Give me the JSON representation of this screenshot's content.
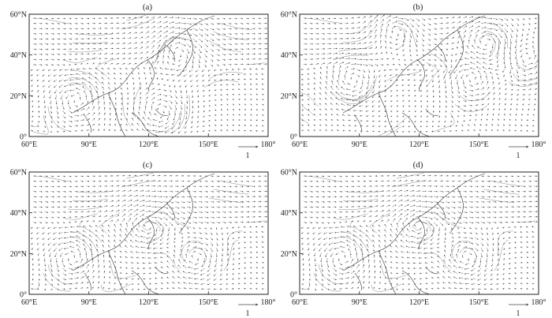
{
  "panels": [
    {
      "id": "a",
      "label": "(a)",
      "vortices": [
        [
          0.62,
          0.28,
          1
        ],
        [
          0.2,
          0.7,
          -1
        ],
        [
          0.55,
          0.8,
          1
        ]
      ]
    },
    {
      "id": "b",
      "label": "(b)",
      "vortices": [
        [
          0.78,
          0.22,
          1
        ],
        [
          0.95,
          0.38,
          -1
        ],
        [
          0.22,
          0.55,
          1
        ],
        [
          0.72,
          0.5,
          -1
        ],
        [
          0.4,
          0.12,
          1
        ]
      ]
    },
    {
      "id": "c",
      "label": "(c)",
      "vortices": [
        [
          0.5,
          0.45,
          1
        ],
        [
          0.18,
          0.7,
          -1
        ],
        [
          0.7,
          0.7,
          1
        ]
      ]
    },
    {
      "id": "d",
      "label": "(d)",
      "vortices": [
        [
          0.5,
          0.45,
          1
        ],
        [
          0.18,
          0.7,
          -1
        ],
        [
          0.7,
          0.7,
          1
        ]
      ]
    }
  ],
  "axes": {
    "x_ticks": [
      "60°E",
      "90°E",
      "120°E",
      "150°E",
      "180°"
    ],
    "y_ticks": [
      "0°",
      "20°N",
      "40°N",
      "60°N"
    ]
  },
  "reference_vector": {
    "label": "1"
  },
  "colors": {
    "stroke": "#555555",
    "coast": "#333333",
    "frame": "#222222"
  }
}
